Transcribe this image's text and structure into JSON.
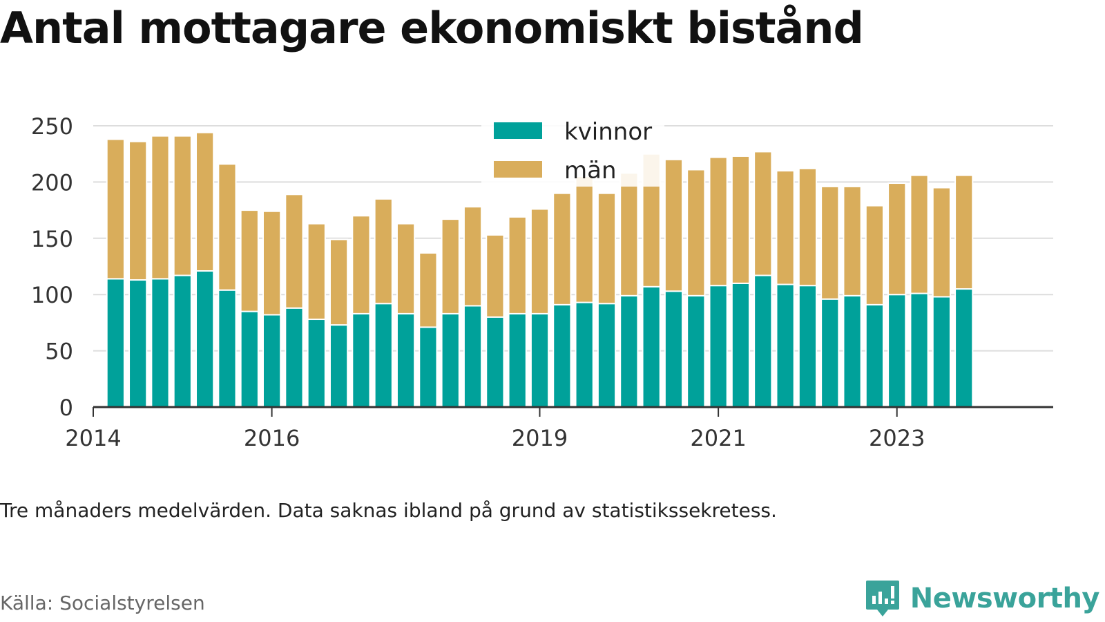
{
  "chart_data": {
    "type": "bar",
    "stacked": true,
    "title": "Antal mottagare ekonomiskt bistånd",
    "note": "Tre månaders medelvärden. Data saknas ibland på grund av statistikssekretess.",
    "source": "Källa: Socialstyrelsen",
    "brand": "Newsworthy",
    "xlabel": "",
    "ylabel": "",
    "ylim": [
      0,
      250
    ],
    "yticks": [
      0,
      50,
      100,
      150,
      200,
      250
    ],
    "xlim": [
      2014,
      2024.75
    ],
    "xticks": [
      {
        "value": 2014,
        "label": "2014"
      },
      {
        "value": 2016,
        "label": "2016"
      },
      {
        "value": 2019,
        "label": "2019"
      },
      {
        "value": 2021,
        "label": "2021"
      },
      {
        "value": 2023,
        "label": "2023"
      }
    ],
    "legend_position": "top-center",
    "x": [
      2014.25,
      2014.5,
      2014.75,
      2015.0,
      2015.25,
      2015.5,
      2015.75,
      2016.0,
      2016.25,
      2016.5,
      2016.75,
      2017.0,
      2017.25,
      2017.5,
      2017.75,
      2018.0,
      2018.25,
      2018.5,
      2018.75,
      2019.0,
      2019.25,
      2019.5,
      2019.75,
      2020.0,
      2020.25,
      2020.5,
      2020.75,
      2021.0,
      2021.25,
      2021.5,
      2021.75,
      2022.0,
      2022.25,
      2022.5,
      2022.75,
      2023.0,
      2023.25,
      2023.5,
      2023.75
    ],
    "series": [
      {
        "name": "kvinnor",
        "color": "#00a19a",
        "values": [
          114,
          113,
          114,
          117,
          121,
          104,
          85,
          82,
          88,
          78,
          73,
          83,
          92,
          83,
          71,
          83,
          90,
          80,
          83,
          83,
          91,
          93,
          92,
          99,
          107,
          103,
          99,
          108,
          110,
          117,
          109,
          108,
          96,
          99,
          91,
          100,
          101,
          98,
          105
        ]
      },
      {
        "name": "män",
        "color": "#d9ad5b",
        "values": [
          124,
          123,
          127,
          124,
          123,
          112,
          90,
          92,
          101,
          85,
          76,
          87,
          93,
          80,
          66,
          84,
          88,
          73,
          86,
          93,
          99,
          112,
          98,
          109,
          118,
          117,
          112,
          114,
          113,
          110,
          101,
          104,
          100,
          97,
          88,
          99,
          105,
          97,
          101
        ]
      }
    ]
  }
}
